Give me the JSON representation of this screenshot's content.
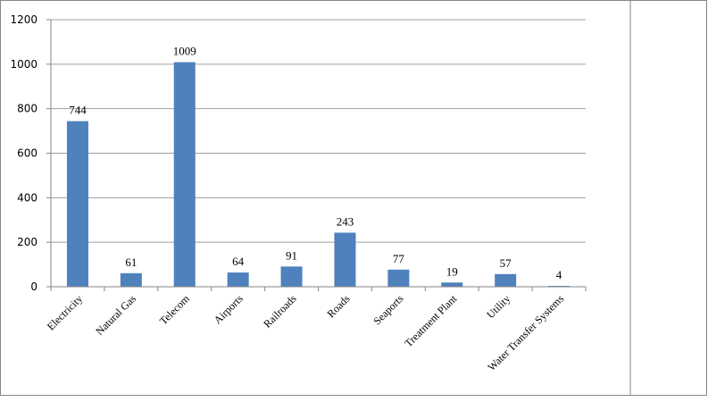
{
  "chart_data": {
    "type": "bar",
    "categories": [
      "Electricity",
      "Natural Gas",
      "Telecom",
      "Airports",
      "Railroads",
      "Roads",
      "Seaports",
      "Treatment Plant",
      "Utility",
      "Water Transfer Systems"
    ],
    "values": [
      744,
      61,
      1009,
      64,
      91,
      243,
      77,
      19,
      57,
      4
    ],
    "color": "#4f81bd",
    "ylim": [
      0,
      1200
    ],
    "yticks": [
      0,
      200,
      400,
      600,
      800,
      1000,
      1200
    ],
    "grid": true
  }
}
